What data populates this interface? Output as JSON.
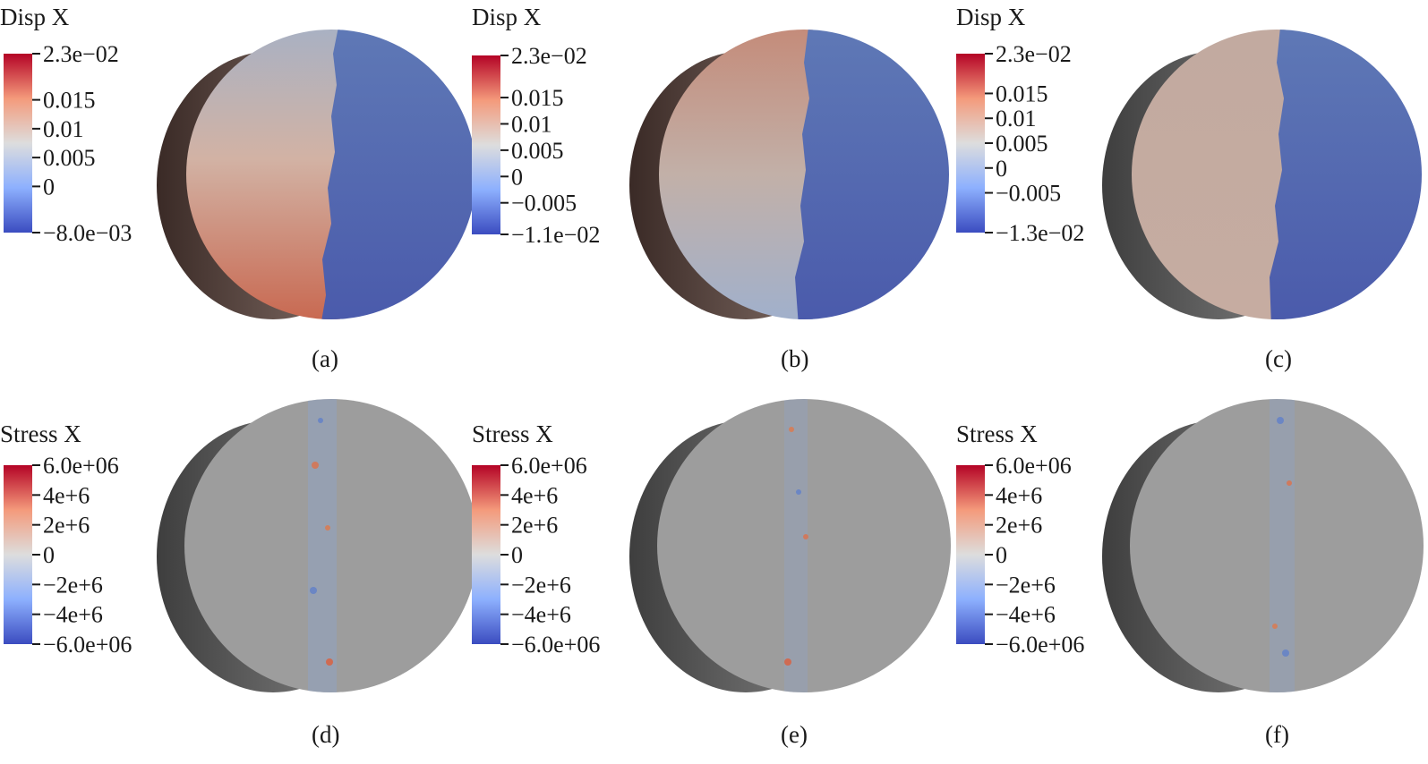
{
  "colorscale": {
    "name": "cool-to-warm",
    "stops": [
      "#3b4cc0",
      "#8db0fe",
      "#dddddd",
      "#f49a7b",
      "#b40426"
    ]
  },
  "panels": [
    {
      "id": "a",
      "caption": "(a)",
      "field": "Disp X",
      "range": [
        -0.008,
        0.023
      ],
      "ticks": [
        {
          "value": 0.023,
          "label": "2.3e−02"
        },
        {
          "value": 0.015,
          "label": "0.015"
        },
        {
          "value": 0.01,
          "label": "0.01"
        },
        {
          "value": 0.005,
          "label": "0.005"
        },
        {
          "value": 0,
          "label": "0"
        },
        {
          "value": -0.008,
          "label": "−8.0e−03"
        }
      ]
    },
    {
      "id": "b",
      "caption": "(b)",
      "field": "Disp X",
      "range": [
        -0.011,
        0.023
      ],
      "ticks": [
        {
          "value": 0.023,
          "label": "2.3e−02"
        },
        {
          "value": 0.015,
          "label": "0.015"
        },
        {
          "value": 0.01,
          "label": "0.01"
        },
        {
          "value": 0.005,
          "label": "0.005"
        },
        {
          "value": 0,
          "label": "0"
        },
        {
          "value": -0.005,
          "label": "−0.005"
        },
        {
          "value": -0.011,
          "label": "−1.1e−02"
        }
      ]
    },
    {
      "id": "c",
      "caption": "(c)",
      "field": "Disp X",
      "range": [
        -0.013,
        0.023
      ],
      "ticks": [
        {
          "value": 0.023,
          "label": "2.3e−02"
        },
        {
          "value": 0.015,
          "label": "0.015"
        },
        {
          "value": 0.01,
          "label": "0.01"
        },
        {
          "value": 0.005,
          "label": "0.005"
        },
        {
          "value": 0,
          "label": "0"
        },
        {
          "value": -0.005,
          "label": "−0.005"
        },
        {
          "value": -0.013,
          "label": "−1.3e−02"
        }
      ]
    },
    {
      "id": "d",
      "caption": "(d)",
      "field": "Stress X",
      "range": [
        -6000000,
        6000000
      ],
      "ticks": [
        {
          "value": 6000000,
          "label": "6.0e+06"
        },
        {
          "value": 4000000,
          "label": "4e+6"
        },
        {
          "value": 2000000,
          "label": "2e+6"
        },
        {
          "value": 0,
          "label": "0"
        },
        {
          "value": -2000000,
          "label": "−2e+6"
        },
        {
          "value": -4000000,
          "label": "−4e+6"
        },
        {
          "value": -6000000,
          "label": "−6.0e+06"
        }
      ]
    },
    {
      "id": "e",
      "caption": "(e)",
      "field": "Stress X",
      "range": [
        -6000000,
        6000000
      ],
      "ticks": [
        {
          "value": 6000000,
          "label": "6.0e+06"
        },
        {
          "value": 4000000,
          "label": "4e+6"
        },
        {
          "value": 2000000,
          "label": "2e+6"
        },
        {
          "value": 0,
          "label": "0"
        },
        {
          "value": -2000000,
          "label": "−2e+6"
        },
        {
          "value": -4000000,
          "label": "−4e+6"
        },
        {
          "value": -6000000,
          "label": "−6.0e+06"
        }
      ]
    },
    {
      "id": "f",
      "caption": "(f)",
      "field": "Stress X",
      "range": [
        -6000000,
        6000000
      ],
      "ticks": [
        {
          "value": 6000000,
          "label": "6.0e+06"
        },
        {
          "value": 4000000,
          "label": "4e+6"
        },
        {
          "value": 2000000,
          "label": "2e+6"
        },
        {
          "value": 0,
          "label": "0"
        },
        {
          "value": -2000000,
          "label": "−2e+6"
        },
        {
          "value": -4000000,
          "label": "−4e+6"
        },
        {
          "value": -6000000,
          "label": "−6.0e+06"
        }
      ]
    }
  ]
}
